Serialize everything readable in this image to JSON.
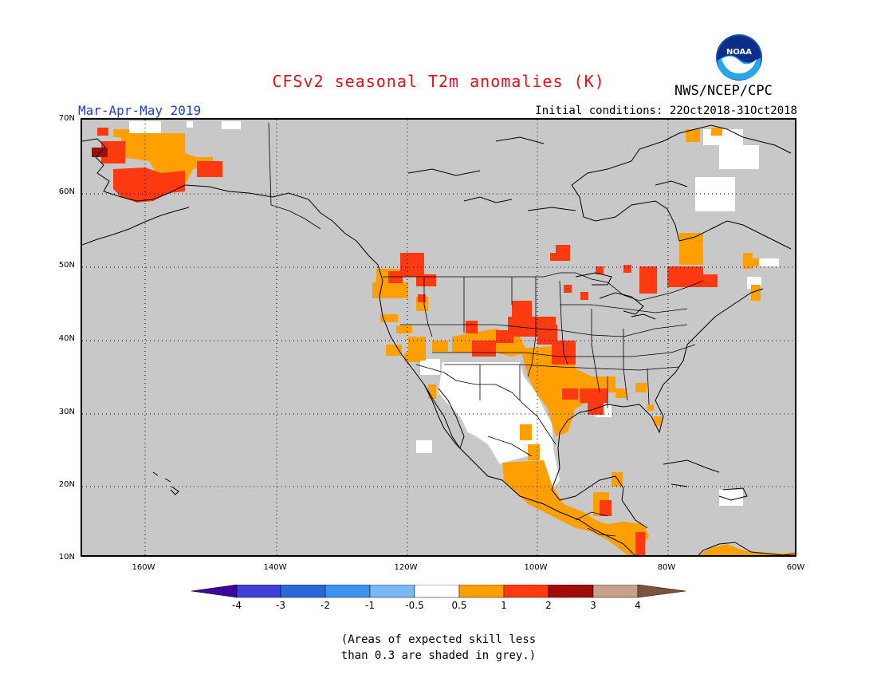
{
  "title": "CFSv2 seasonal T2m anomalies (K)",
  "period": "Mar-Apr-May 2019",
  "initial_conditions": "Initial conditions: 22Oct2018-31Oct2018",
  "agency": "NWS/NCEP/CPC",
  "logo_text": "NOAA",
  "map": {
    "lat_labels": [
      "70N",
      "60N",
      "50N",
      "40N",
      "30N",
      "20N",
      "10N"
    ],
    "lon_labels": [
      "160W",
      "140W",
      "120W",
      "100W",
      "80W",
      "60W"
    ],
    "land_color": "#c8c8c8",
    "grid": "dotted"
  },
  "colorbar": {
    "labels": [
      "-4",
      "-3",
      "-2",
      "-1",
      "-0.5",
      "0.5",
      "1",
      "2",
      "3",
      "4"
    ],
    "colors": [
      "#3a08a0",
      "#4040d8",
      "#2868d8",
      "#3c94f0",
      "#7ab8f4",
      "#ffffff",
      "#ffa000",
      "#ff3a10",
      "#a00c08",
      "#c8a08c",
      "#805040"
    ]
  },
  "note": {
    "line1": "(Areas of expected skill less",
    "line2": "than 0.3 are shaded in grey.)"
  },
  "legend_classes": {
    "white": "-0.5 to 0.5",
    "orange": "0.5 to 1",
    "red": "1 to 2",
    "darkred": "2 to 3"
  }
}
